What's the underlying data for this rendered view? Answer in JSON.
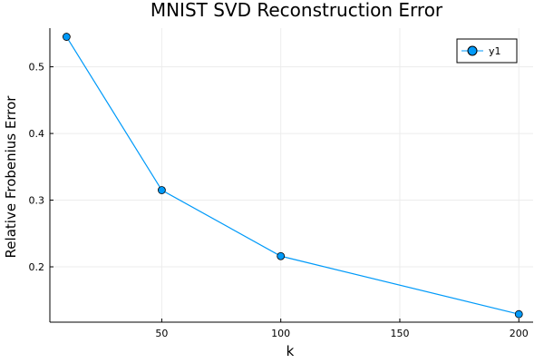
{
  "chart_data": {
    "type": "line",
    "title": "MNIST SVD Reconstruction Error",
    "xlabel": "k",
    "ylabel": "Relative Frobenius Error",
    "xlim": [
      3,
      206
    ],
    "ylim": [
      0.117,
      0.558
    ],
    "x_ticks": [
      50,
      100,
      150,
      200
    ],
    "y_ticks": [
      0.2,
      0.3,
      0.4,
      0.5
    ],
    "grid": true,
    "legend_position": "top-right",
    "series": [
      {
        "name": "y1",
        "color": "#009af9",
        "marker": "circle",
        "x": [
          10,
          50,
          100,
          200
        ],
        "y": [
          0.545,
          0.315,
          0.216,
          0.129
        ]
      }
    ]
  }
}
